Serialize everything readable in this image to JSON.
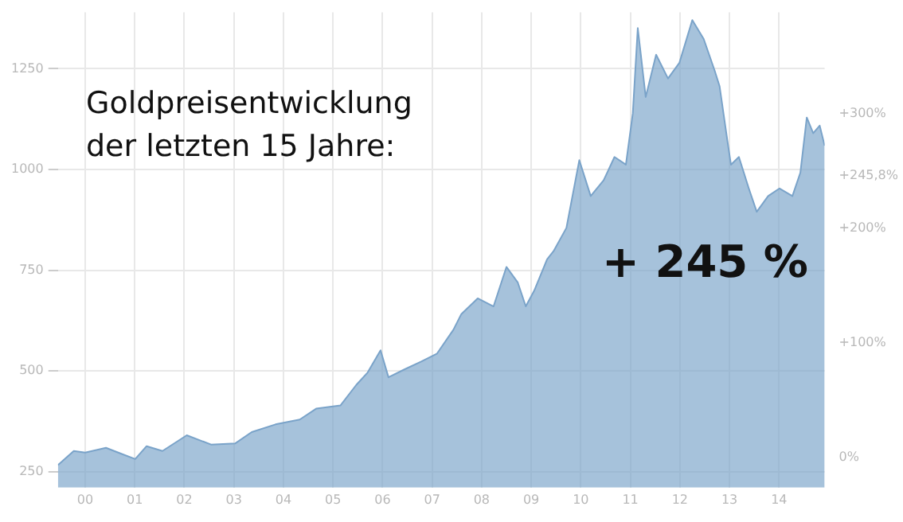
{
  "chart_data": {
    "type": "area",
    "title": "Goldpreisentwicklung\nder letzten 15 Jahre:",
    "annotations": [
      "+ 245 %"
    ],
    "x": [
      1999.45,
      1999.77,
      2000.0,
      2000.42,
      2000.75,
      2001.01,
      2001.24,
      2001.56,
      2002.05,
      2002.54,
      2003.03,
      2003.36,
      2003.84,
      2004.33,
      2004.66,
      2005.15,
      2005.47,
      2005.7,
      2005.96,
      2006.12,
      2006.45,
      2006.78,
      2007.1,
      2007.43,
      2007.59,
      2007.92,
      2008.24,
      2008.5,
      2008.73,
      2008.89,
      2009.06,
      2009.32,
      2009.45,
      2009.71,
      2009.97,
      2010.2,
      2010.46,
      2010.68,
      2010.91,
      2011.05,
      2011.15,
      2011.31,
      2011.52,
      2011.76,
      2011.99,
      2012.25,
      2012.48,
      2012.7,
      2012.8,
      2012.96,
      2013.03,
      2013.19,
      2013.39,
      2013.55,
      2013.78,
      2014.01,
      2014.27,
      2014.43,
      2014.56,
      2014.69,
      2014.82,
      2014.92
    ],
    "series": [
      {
        "color": "#7aa3c9",
        "values": [
          266,
          301,
          297,
          309,
          293,
          281,
          313,
          301,
          340,
          317,
          320,
          348,
          367,
          379,
          406,
          414,
          465,
          496,
          551,
          484,
          504,
          523,
          543,
          602,
          641,
          680,
          660,
          758,
          719,
          660,
          699,
          777,
          797,
          855,
          1023,
          934,
          973,
          1031,
          1012,
          1140,
          1351,
          1180,
          1285,
          1226,
          1265,
          1371,
          1324,
          1246,
          1207,
          1070,
          1012,
          1031,
          953,
          895,
          934,
          953,
          934,
          992,
          1129,
          1090,
          1109,
          1059
        ]
      }
    ],
    "xlim": [
      1999.45,
      2014.92
    ],
    "xticks": [
      {
        "value": 2000,
        "label": "00"
      },
      {
        "value": 2001,
        "label": "01"
      },
      {
        "value": 2002,
        "label": "02"
      },
      {
        "value": 2003,
        "label": "03"
      },
      {
        "value": 2004,
        "label": "04"
      },
      {
        "value": 2005,
        "label": "05"
      },
      {
        "value": 2006,
        "label": "06"
      },
      {
        "value": 2007,
        "label": "07"
      },
      {
        "value": 2008,
        "label": "08"
      },
      {
        "value": 2009,
        "label": "09"
      },
      {
        "value": 2010,
        "label": "10"
      },
      {
        "value": 2011,
        "label": "11"
      },
      {
        "value": 2012,
        "label": "12"
      },
      {
        "value": 2013,
        "label": "13"
      },
      {
        "value": 2014,
        "label": "14"
      }
    ],
    "ylim": [
      210,
      1390
    ],
    "yticks": [
      250,
      500,
      750,
      1000,
      1250
    ],
    "y2lim": [
      -26,
      388
    ],
    "y2ticks": [
      {
        "value": 0,
        "label": "0%"
      },
      {
        "value": 100,
        "label": "+100%"
      },
      {
        "value": 200,
        "label": "+200%"
      },
      {
        "value": 245.8,
        "label": "+245,8%"
      },
      {
        "value": 300,
        "label": "+300%"
      }
    ],
    "grid": true,
    "marker": "none",
    "line_style": "solid"
  }
}
